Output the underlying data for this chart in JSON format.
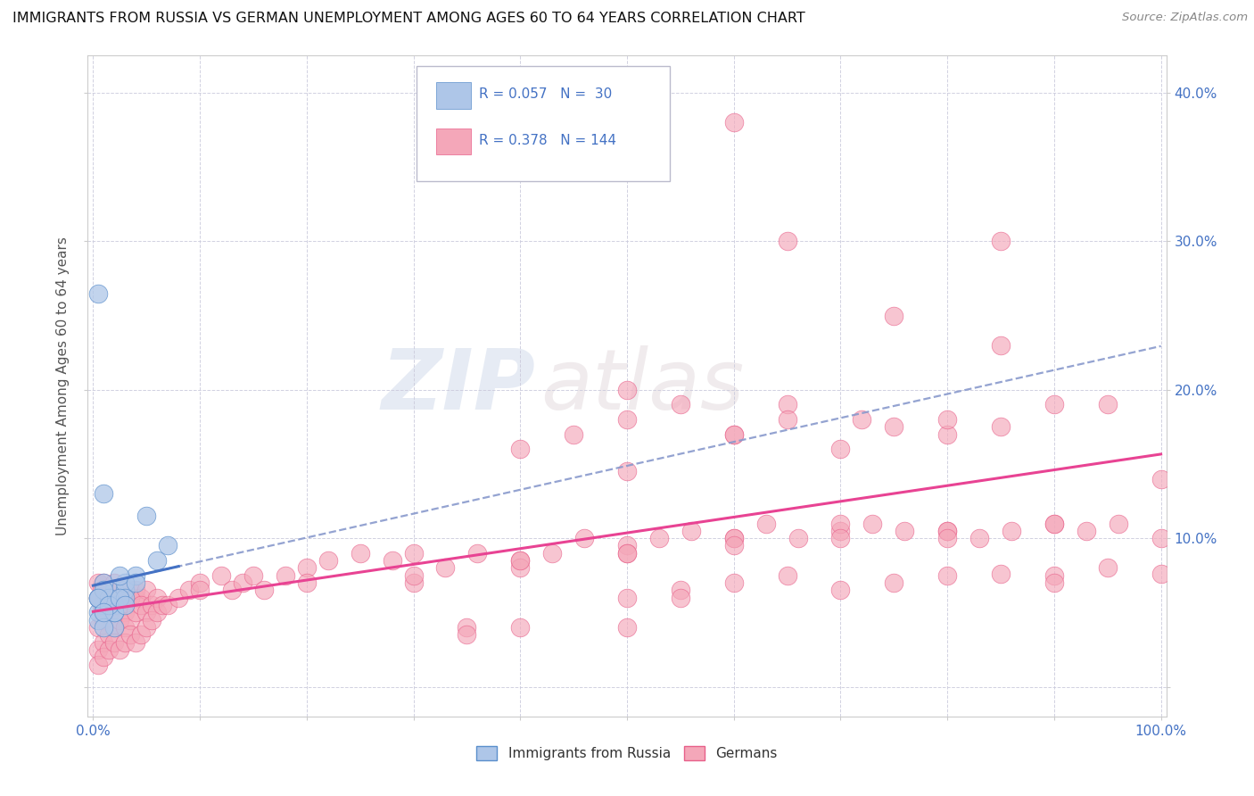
{
  "title": "IMMIGRANTS FROM RUSSIA VS GERMAN UNEMPLOYMENT AMONG AGES 60 TO 64 YEARS CORRELATION CHART",
  "source": "Source: ZipAtlas.com",
  "ylabel": "Unemployment Among Ages 60 to 64 years",
  "xlim": [
    -0.005,
    1.005
  ],
  "ylim": [
    -0.02,
    0.425
  ],
  "xticks": [
    0.0,
    0.1,
    0.2,
    0.3,
    0.4,
    0.5,
    0.6,
    0.7,
    0.8,
    0.9,
    1.0
  ],
  "yticks": [
    0.0,
    0.1,
    0.2,
    0.3,
    0.4
  ],
  "xticklabels": [
    "0.0%",
    "",
    "",
    "",
    "",
    "",
    "",
    "",
    "",
    "",
    "100.0%"
  ],
  "yticklabels_right": [
    "",
    "10.0%",
    "20.0%",
    "30.0%",
    "40.0%"
  ],
  "blue_color": "#aec6e8",
  "blue_edge_color": "#5b8fcc",
  "pink_color": "#f4a7b9",
  "pink_edge_color": "#e8608a",
  "blue_line_color": "#4472c4",
  "pink_line_color": "#e84393",
  "dashed_line_color": "#8899cc",
  "R_blue": 0.057,
  "N_blue": 30,
  "R_pink": 0.378,
  "N_pink": 144,
  "legend_label_blue": "Immigrants from Russia",
  "legend_label_pink": "Germans",
  "watermark_zip": "ZIP",
  "watermark_atlas": "atlas",
  "blue_scatter_x": [
    0.005,
    0.01,
    0.005,
    0.02,
    0.01,
    0.005,
    0.02,
    0.01,
    0.005,
    0.03,
    0.02,
    0.01,
    0.005,
    0.02,
    0.04,
    0.015,
    0.01,
    0.03,
    0.025,
    0.02,
    0.005,
    0.06,
    0.03,
    0.015,
    0.01,
    0.04,
    0.025,
    0.07,
    0.05,
    0.03
  ],
  "blue_scatter_y": [
    0.265,
    0.13,
    0.05,
    0.065,
    0.055,
    0.045,
    0.04,
    0.04,
    0.06,
    0.065,
    0.055,
    0.07,
    0.06,
    0.05,
    0.075,
    0.06,
    0.065,
    0.07,
    0.075,
    0.05,
    0.06,
    0.085,
    0.06,
    0.055,
    0.05,
    0.07,
    0.06,
    0.095,
    0.115,
    0.055
  ],
  "pink_scatter_x": [
    0.005,
    0.008,
    0.01,
    0.012,
    0.015,
    0.02,
    0.025,
    0.03,
    0.005,
    0.008,
    0.01,
    0.015,
    0.02,
    0.025,
    0.03,
    0.035,
    0.04,
    0.005,
    0.01,
    0.015,
    0.02,
    0.025,
    0.03,
    0.035,
    0.04,
    0.045,
    0.05,
    0.005,
    0.01,
    0.015,
    0.02,
    0.025,
    0.03,
    0.035,
    0.04,
    0.045,
    0.05,
    0.055,
    0.06,
    0.005,
    0.01,
    0.015,
    0.02,
    0.025,
    0.03,
    0.035,
    0.04,
    0.045,
    0.05,
    0.055,
    0.06,
    0.065,
    0.07,
    0.08,
    0.09,
    0.1,
    0.12,
    0.13,
    0.14,
    0.15,
    0.16,
    0.18,
    0.2,
    0.22,
    0.25,
    0.28,
    0.3,
    0.33,
    0.36,
    0.4,
    0.43,
    0.46,
    0.5,
    0.53,
    0.56,
    0.6,
    0.63,
    0.66,
    0.7,
    0.73,
    0.76,
    0.8,
    0.83,
    0.86,
    0.9,
    0.93,
    0.96,
    1.0,
    0.5,
    0.6,
    0.65,
    0.72,
    0.8,
    0.85,
    0.3,
    0.4,
    0.5,
    0.6,
    0.7,
    0.8,
    0.1,
    0.2,
    0.3,
    0.4,
    0.5,
    0.6,
    0.7,
    0.8,
    0.9,
    0.5,
    0.55,
    0.6,
    0.65,
    0.7,
    0.75,
    0.8,
    0.85,
    0.9,
    0.95,
    1.0,
    0.4,
    0.45,
    0.5,
    0.55,
    0.6,
    0.65,
    0.7,
    0.75,
    0.8,
    0.85,
    0.9,
    0.95,
    1.0,
    0.35,
    0.4,
    0.6,
    0.35,
    0.5,
    0.65,
    0.75,
    0.85,
    0.9,
    0.5,
    0.55
  ],
  "pink_scatter_y": [
    0.06,
    0.055,
    0.05,
    0.06,
    0.055,
    0.06,
    0.055,
    0.05,
    0.07,
    0.065,
    0.07,
    0.065,
    0.07,
    0.065,
    0.06,
    0.065,
    0.06,
    0.04,
    0.045,
    0.05,
    0.055,
    0.06,
    0.055,
    0.06,
    0.065,
    0.06,
    0.065,
    0.025,
    0.03,
    0.035,
    0.04,
    0.045,
    0.04,
    0.045,
    0.05,
    0.055,
    0.05,
    0.055,
    0.06,
    0.015,
    0.02,
    0.025,
    0.03,
    0.025,
    0.03,
    0.035,
    0.03,
    0.035,
    0.04,
    0.045,
    0.05,
    0.055,
    0.055,
    0.06,
    0.065,
    0.07,
    0.075,
    0.065,
    0.07,
    0.075,
    0.065,
    0.075,
    0.08,
    0.085,
    0.09,
    0.085,
    0.09,
    0.08,
    0.09,
    0.085,
    0.09,
    0.1,
    0.095,
    0.1,
    0.105,
    0.1,
    0.11,
    0.1,
    0.105,
    0.11,
    0.105,
    0.105,
    0.1,
    0.105,
    0.11,
    0.105,
    0.11,
    0.1,
    0.18,
    0.17,
    0.19,
    0.18,
    0.17,
    0.23,
    0.07,
    0.08,
    0.09,
    0.1,
    0.11,
    0.105,
    0.065,
    0.07,
    0.075,
    0.085,
    0.09,
    0.095,
    0.1,
    0.1,
    0.11,
    0.2,
    0.19,
    0.17,
    0.18,
    0.16,
    0.175,
    0.18,
    0.175,
    0.19,
    0.19,
    0.14,
    0.16,
    0.17,
    0.145,
    0.065,
    0.07,
    0.075,
    0.065,
    0.07,
    0.075,
    0.076,
    0.075,
    0.08,
    0.076,
    0.04,
    0.04,
    0.38,
    0.035,
    0.04,
    0.3,
    0.25,
    0.3,
    0.07,
    0.06,
    0.06
  ]
}
